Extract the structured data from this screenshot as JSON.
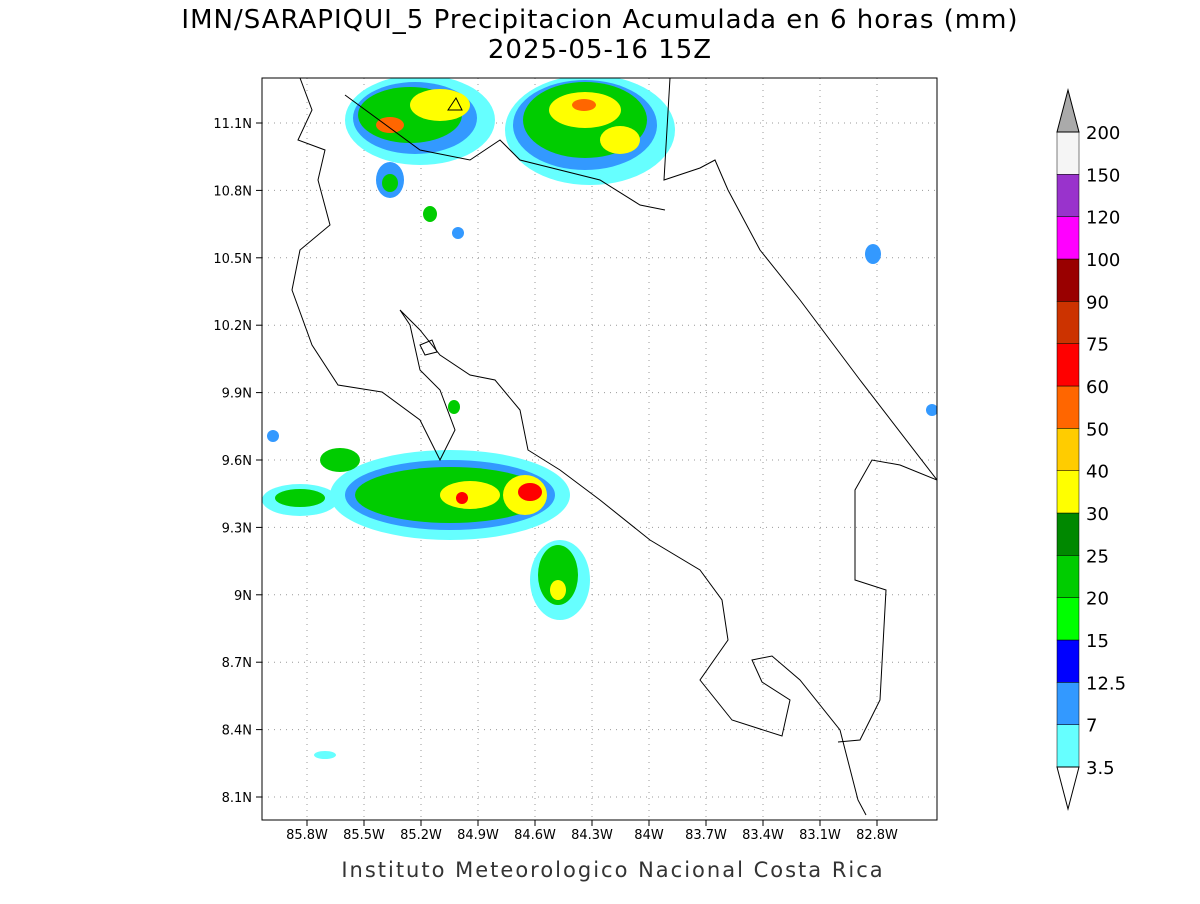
{
  "title": "IMN/SARAPIQUI_5 Precipitacion Acumulada en 6 horas (mm)",
  "subtitle": "2025-05-16 15Z",
  "map": {
    "lat_labels": [
      "11.1N",
      "10.8N",
      "10.5N",
      "10.2N",
      "9.9N",
      "9.6N",
      "9.3N",
      "9N",
      "8.7N",
      "8.4N",
      "8.1N"
    ],
    "lon_labels": [
      "85.8W",
      "85.5W",
      "85.2W",
      "84.9W",
      "84.6W",
      "84.3W",
      "84W",
      "83.7W",
      "83.4W",
      "83.1W",
      "82.8W"
    ]
  },
  "colorbar": {
    "levels": [
      3.5,
      7,
      12.5,
      15,
      20,
      25,
      30,
      40,
      50,
      60,
      75,
      90,
      100,
      120,
      150,
      200
    ],
    "colors": [
      "#66ffff",
      "#3399ff",
      "#0000ff",
      "#00ff00",
      "#00cc00",
      "#008800",
      "#ffff00",
      "#ffcc00",
      "#ff6600",
      "#ff0000",
      "#cc3300",
      "#990000",
      "#ff00ff",
      "#9933cc",
      "#f5f5f5"
    ],
    "over_color": "#aaaaaa",
    "under_color": "#ffffff"
  },
  "footer": "Instituto Meteorologico Nacional Costa Rica"
}
